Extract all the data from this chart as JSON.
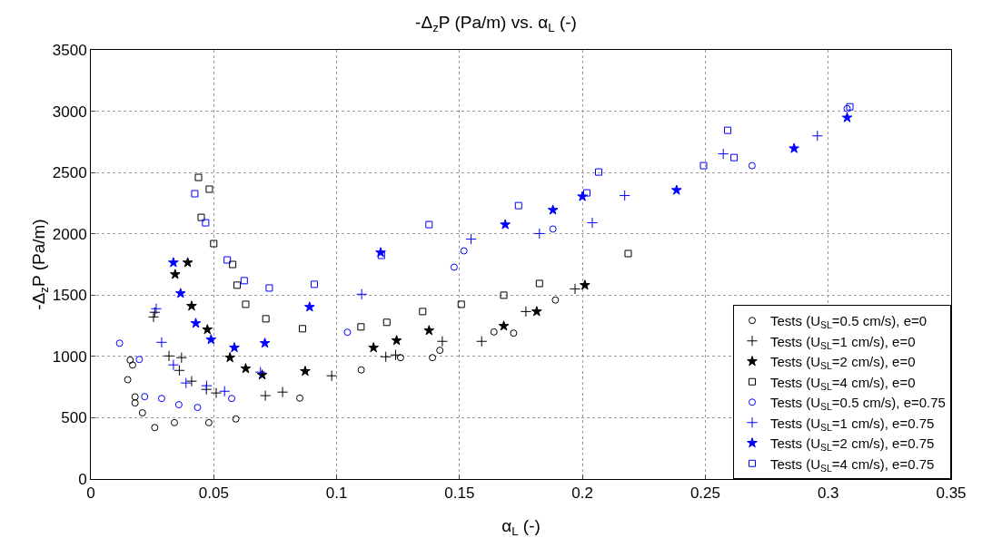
{
  "chart_data": {
    "type": "scatter",
    "title": "-Δ$_{z}$P (Pa/m) vs. α$_{L}$ (-)",
    "xlabel": "α$_{L}$ (-)",
    "ylabel": "-Δ$_{z}$P (Pa/m)",
    "xlim": [
      0,
      0.35
    ],
    "xticks": [
      0,
      0.05,
      0.1,
      0.15,
      0.2,
      0.25,
      0.3,
      0.35
    ],
    "ylim": [
      0,
      3500
    ],
    "yticks": [
      0,
      500,
      1000,
      1500,
      2000,
      2500,
      3000,
      3500
    ],
    "grid": true,
    "legend": "bottom right",
    "series": [
      {
        "name": "Tests (U$_{SL}$=0.5 cm/s), e=0",
        "color": "#000000",
        "marker": "circle",
        "x": [
          0.015,
          0.016,
          0.017,
          0.018,
          0.018,
          0.021,
          0.026,
          0.034,
          0.048,
          0.059,
          0.085,
          0.11,
          0.126,
          0.139,
          0.142,
          0.164,
          0.172,
          0.189
        ],
        "values": [
          810,
          970,
          930,
          620,
          670,
          540,
          420,
          460,
          460,
          490,
          660,
          890,
          990,
          990,
          1050,
          1200,
          1190,
          1460
        ]
      },
      {
        "name": "Tests (U$_{SL}$=1 cm/s), e=0",
        "color": "#000000",
        "marker": "cross",
        "x": [
          0.0255,
          0.026,
          0.0318,
          0.0369,
          0.036,
          0.041,
          0.047,
          0.051,
          0.071,
          0.078,
          0.098,
          0.12,
          0.124,
          0.143,
          0.159,
          0.177,
          0.197
        ],
        "values": [
          1322,
          1360,
          1004,
          990,
          886,
          798,
          731,
          702,
          680,
          709,
          842,
          997,
          1012,
          1123,
          1123,
          1366,
          1551
        ]
      },
      {
        "name": "Tests (U$_{SL}$=2 cm/s), e=0",
        "color": "#000000",
        "marker": "star",
        "x": [
          0.0394,
          0.0343,
          0.041,
          0.0474,
          0.0566,
          0.063,
          0.0697,
          0.0872,
          0.115,
          0.1244,
          0.1376,
          0.168,
          0.1814,
          0.201
        ],
        "values": [
          1765,
          1669,
          1411,
          1219,
          990,
          901,
          849,
          879,
          1071,
          1130,
          1211,
          1248,
          1366,
          1581
        ]
      },
      {
        "name": "Tests (U$_{SL}$=4 cm/s), e=0",
        "color": "#000000",
        "marker": "square",
        "x": [
          0.0438,
          0.0482,
          0.0449,
          0.05,
          0.0577,
          0.0595,
          0.063,
          0.0712,
          0.0861,
          0.1099,
          0.1204,
          0.135,
          0.1507,
          0.168,
          0.1825,
          0.2186
        ],
        "values": [
          2460,
          2364,
          2134,
          1920,
          1750,
          1581,
          1425,
          1307,
          1226,
          1241,
          1278,
          1366,
          1425,
          1499,
          1595,
          1839
        ]
      },
      {
        "name": "Tests (U$_{SL}$=0.5 cm/s), e=0.75",
        "color": "#0000ff",
        "marker": "circle",
        "x": [
          0.0117,
          0.0197,
          0.0219,
          0.0288,
          0.0358,
          0.0434,
          0.0573,
          0.1044,
          0.1478,
          0.1518,
          0.188,
          0.269,
          0.3077
        ],
        "values": [
          1108,
          975,
          672,
          657,
          606,
          584,
          657,
          1197,
          1728,
          1861,
          2039,
          2556,
          3021
        ]
      },
      {
        "name": "Tests (U$_{SL}$=1 cm/s), e=0.75",
        "color": "#0000ff",
        "marker": "cross",
        "x": [
          0.0266,
          0.0288,
          0.0336,
          0.0387,
          0.0471,
          0.0544,
          0.069,
          0.1102,
          0.1547,
          0.1825,
          0.204,
          0.2172,
          0.2573,
          0.2956
        ],
        "values": [
          1389,
          1115,
          931,
          783,
          761,
          716,
          872,
          1507,
          1957,
          2002,
          2090,
          2312,
          2652,
          2799
        ]
      },
      {
        "name": "Tests (U$_{SL}$=2 cm/s), e=0.75",
        "color": "#0000ff",
        "marker": "star",
        "x": [
          0.0336,
          0.0365,
          0.0427,
          0.0489,
          0.0584,
          0.0708,
          0.089,
          0.1179,
          0.1686,
          0.188,
          0.2,
          0.2383,
          0.2861,
          0.3077
        ],
        "values": [
          1765,
          1514,
          1270,
          1137,
          1071,
          1108,
          1403,
          1847,
          2075,
          2194,
          2304,
          2356,
          2696,
          2947
        ]
      },
      {
        "name": "Tests (U$_{SL}$=4 cm/s), e=0.75",
        "color": "#0000ff",
        "marker": "square",
        "x": [
          0.0423,
          0.0467,
          0.0555,
          0.0624,
          0.0726,
          0.0909,
          0.1182,
          0.1376,
          0.174,
          0.2018,
          0.2066,
          0.2493,
          0.2591,
          0.2617,
          0.3088
        ],
        "values": [
          2327,
          2090,
          1787,
          1618,
          1558,
          1588,
          1824,
          2075,
          2230,
          2334,
          2504,
          2556,
          2844,
          2622,
          3036
        ]
      }
    ]
  }
}
